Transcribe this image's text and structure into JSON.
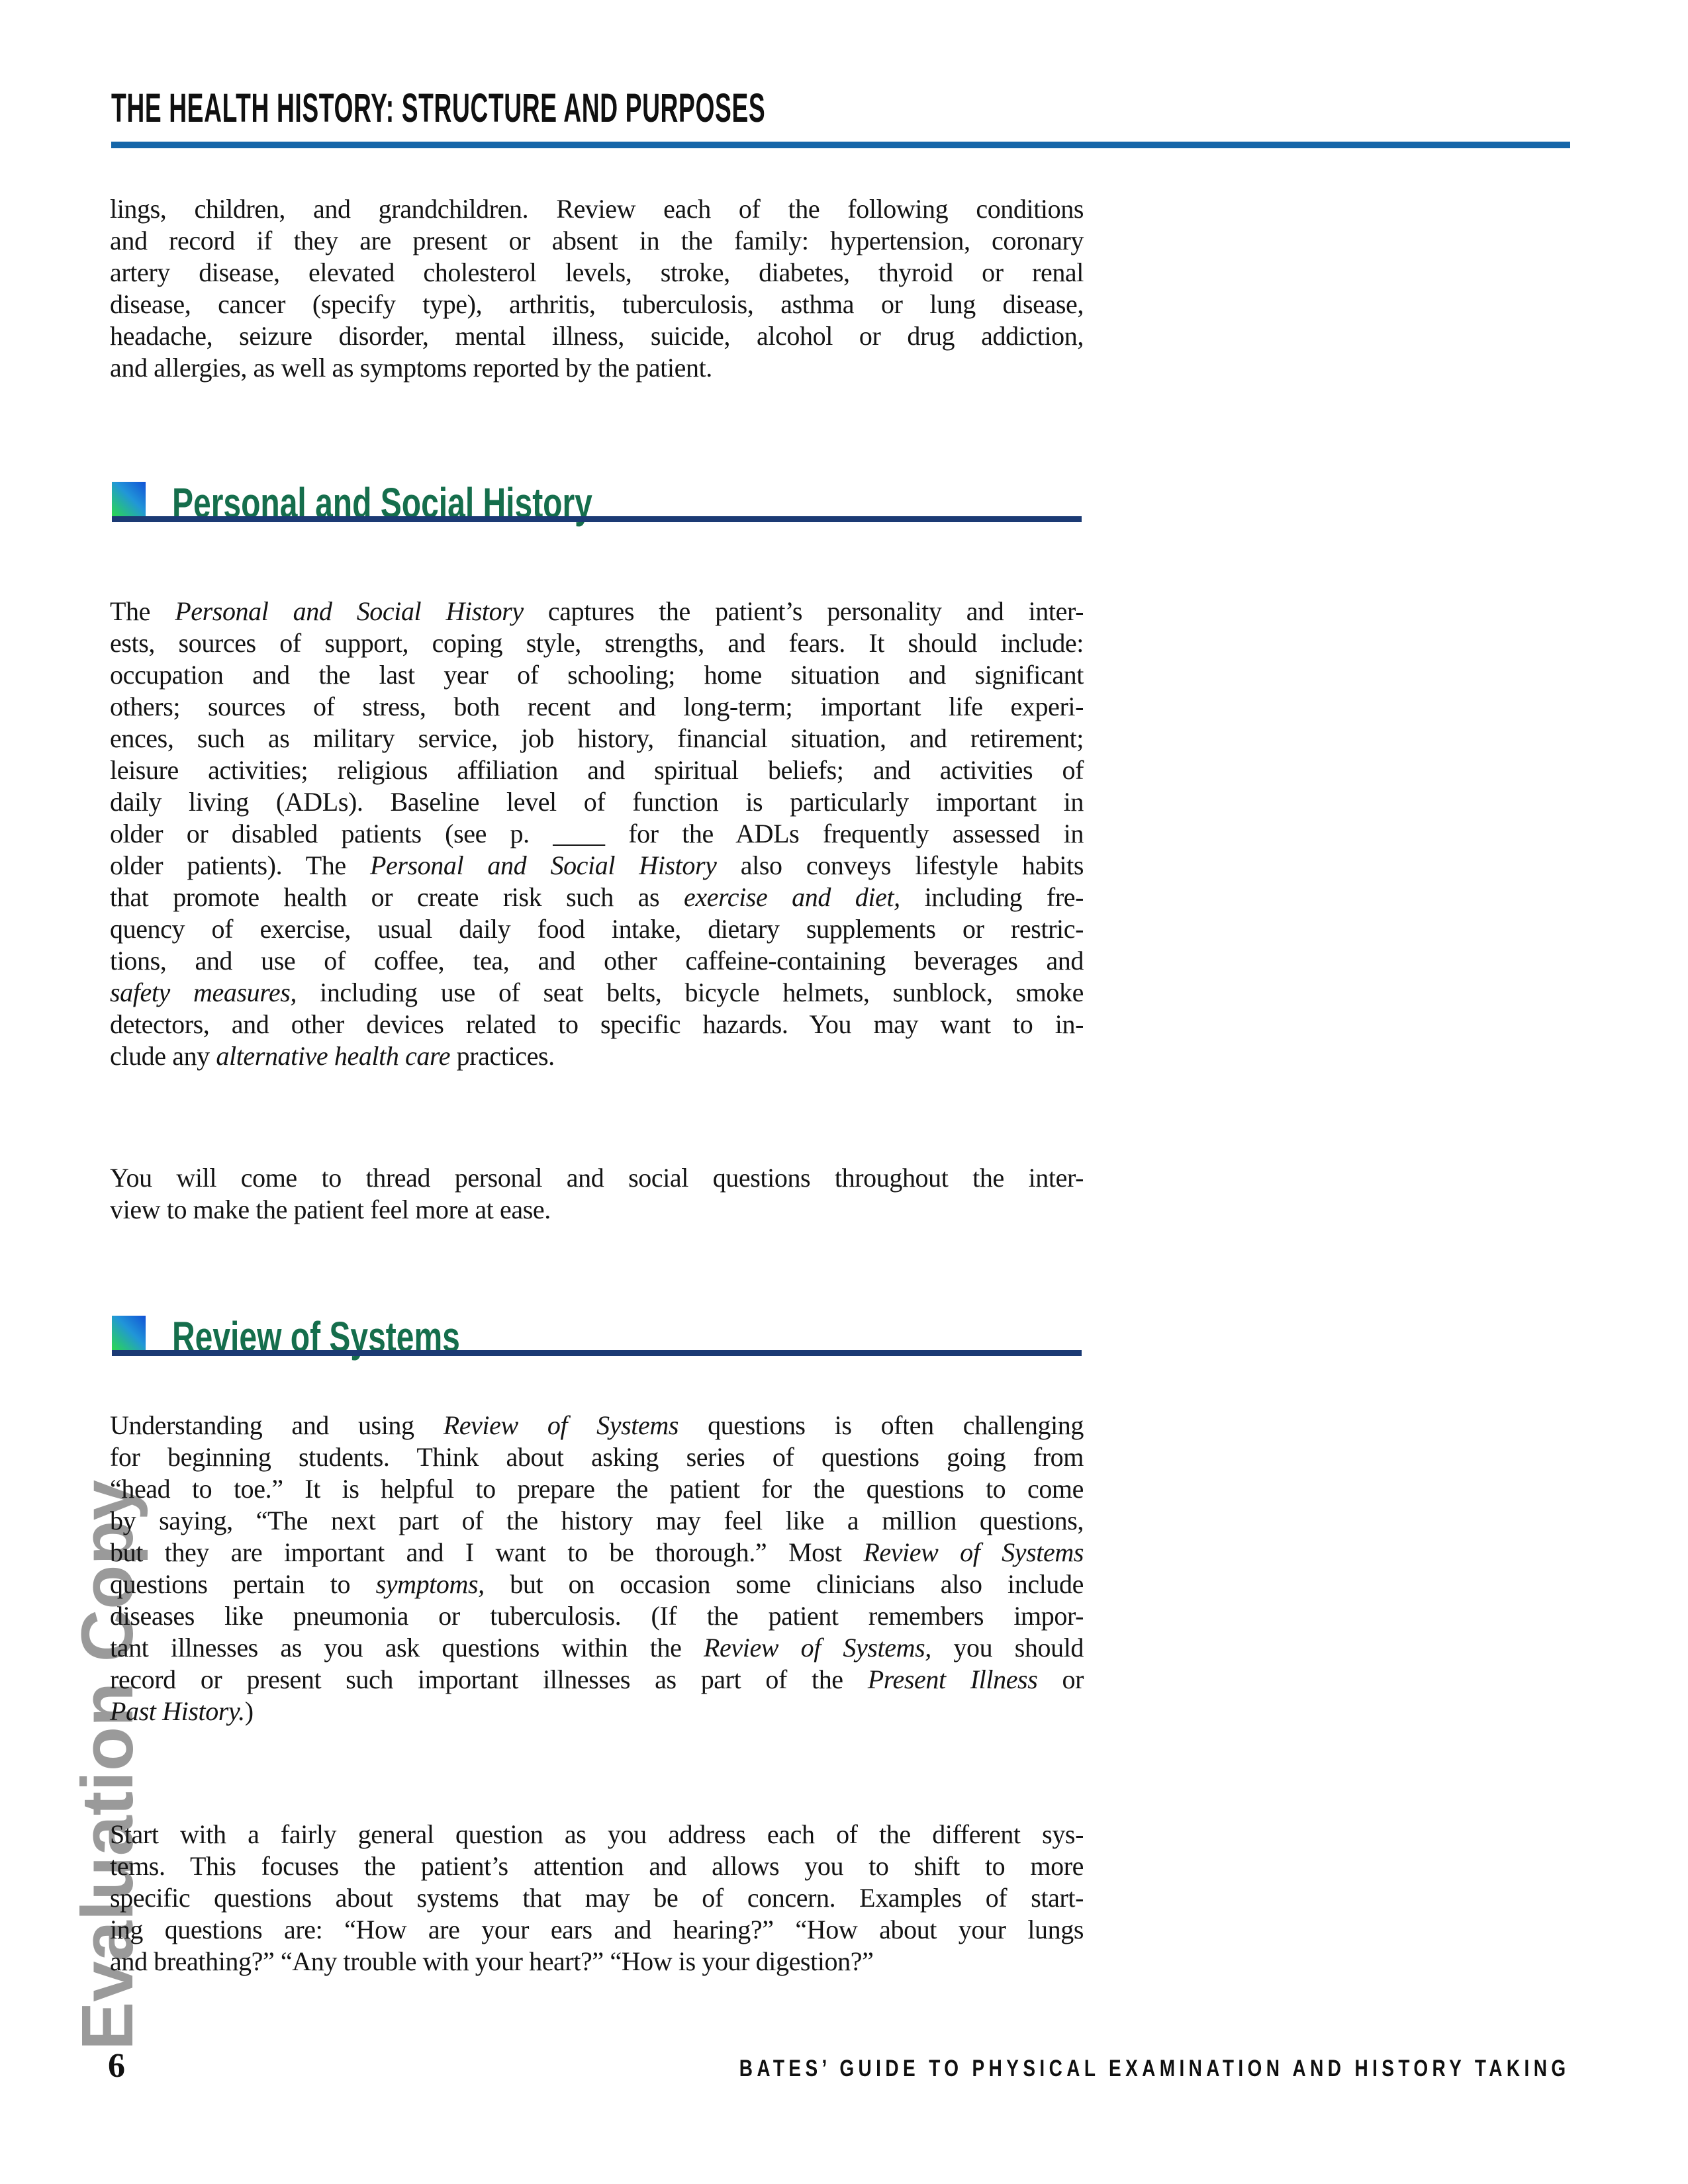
{
  "header": {
    "title": "THE HEALTH HISTORY: STRUCTURE AND PURPOSES"
  },
  "watermark": {
    "text": "Evaluation Copy"
  },
  "sections": [
    {
      "title": "Personal and Social History"
    },
    {
      "title": "Review of Systems"
    }
  ],
  "footer": {
    "page_number": "6",
    "book_title": "BATES’ GUIDE TO PHYSICAL EXAMINATION AND HISTORY TAKING"
  },
  "palette": {
    "header_rule": "#1566a9",
    "heading_green": "#156e4c",
    "heading_rule": "#1b3a74",
    "square_green": "#2bd94e",
    "square_mid": "#2196d8",
    "square_blue": "#1152d6",
    "watermark_gray": "#9a9a9a",
    "text_black": "#141414"
  },
  "content": {
    "paragraphs": [
      {
        "lines": [
          [
            {
              "t": "lings, children, and grandchildren. Review each of the following conditions"
            }
          ],
          [
            {
              "t": "and record if they are present or absent in the family: hypertension, coronary"
            }
          ],
          [
            {
              "t": "artery disease, elevated cholesterol levels, stroke, diabetes, thyroid or renal"
            }
          ],
          [
            {
              "t": "disease, cancer (specify type), arthritis, tuberculosis, asthma or lung disease,"
            }
          ],
          [
            {
              "t": "headache, seizure disorder, mental illness, suicide, alcohol or drug addiction,"
            }
          ],
          [
            {
              "t": "and allergies, as well as symptoms reported by the patient."
            }
          ]
        ]
      },
      {
        "lines": [
          [
            {
              "t": "The "
            },
            {
              "t": "Personal and Social History",
              "i": true
            },
            {
              "t": " captures the patient’s personality and inter-"
            }
          ],
          [
            {
              "t": "ests, sources of support, coping style, strengths, and fears. It should include:"
            }
          ],
          [
            {
              "t": "occupation and the last year of schooling; home situation and significant"
            }
          ],
          [
            {
              "t": "others; sources of stress, both recent and long-term; important life experi-"
            }
          ],
          [
            {
              "t": "ences, such as military service, job history, financial situation, and retirement;"
            }
          ],
          [
            {
              "t": "leisure activities; religious affiliation and spiritual beliefs; and activities of"
            }
          ],
          [
            {
              "t": "daily living (ADLs). Baseline level of function is particularly important in"
            }
          ],
          [
            {
              "t": "older or disabled patients (see p. ____ for the ADLs frequently assessed in"
            }
          ],
          [
            {
              "t": "older patients). The "
            },
            {
              "t": "Personal and Social History",
              "i": true
            },
            {
              "t": " also conveys lifestyle habits"
            }
          ],
          [
            {
              "t": "that promote health or create risk such as "
            },
            {
              "t": "exercise and diet,",
              "i": true
            },
            {
              "t": " including fre-"
            }
          ],
          [
            {
              "t": "quency of exercise, usual daily food intake, dietary supplements or restric-"
            }
          ],
          [
            {
              "t": "tions, and use of coffee, tea, and other caffeine-containing beverages and"
            }
          ],
          [
            {
              "t": "safety measures,",
              "i": true
            },
            {
              "t": " including use of seat belts, bicycle helmets, sunblock, smoke"
            }
          ],
          [
            {
              "t": "detectors, and other devices related to specific hazards. You may want to in-"
            }
          ],
          [
            {
              "t": "clude any "
            },
            {
              "t": "alternative health care",
              "i": true
            },
            {
              "t": " practices."
            }
          ]
        ]
      },
      {
        "lines": [
          [
            {
              "t": "You will come to thread personal and social questions throughout the inter-"
            }
          ],
          [
            {
              "t": "view to make the patient feel more at ease."
            }
          ]
        ]
      },
      {
        "lines": [
          [
            {
              "t": "Understanding and using "
            },
            {
              "t": "Review of Systems",
              "i": true
            },
            {
              "t": " questions is often challenging"
            }
          ],
          [
            {
              "t": "for beginning students. Think about asking series of questions going from"
            }
          ],
          [
            {
              "t": "“head to toe.” It is helpful to prepare the patient for the questions to come"
            }
          ],
          [
            {
              "t": "by saying, “The next part of the history may feel like a million questions,"
            }
          ],
          [
            {
              "t": "but they are important and I want to be thorough.” Most "
            },
            {
              "t": "Review of Systems",
              "i": true
            }
          ],
          [
            {
              "t": "questions pertain to "
            },
            {
              "t": "symptoms,",
              "i": true
            },
            {
              "t": " but on occasion some clinicians also include"
            }
          ],
          [
            {
              "t": "diseases like pneumonia or tuberculosis. (If the patient remembers impor-"
            }
          ],
          [
            {
              "t": "tant illnesses as you ask questions within the "
            },
            {
              "t": "Review of Systems,",
              "i": true
            },
            {
              "t": " you should"
            }
          ],
          [
            {
              "t": "record or present such important illnesses as part of the "
            },
            {
              "t": "Present Illness",
              "i": true
            },
            {
              "t": " or"
            }
          ],
          [
            {
              "t": "Past History.",
              "i": true
            },
            {
              "t": ")"
            }
          ]
        ]
      },
      {
        "lines": [
          [
            {
              "t": "Start with a fairly general question as you address each of the different sys-"
            }
          ],
          [
            {
              "t": "tems. This focuses the patient’s attention and allows you to shift to more"
            }
          ],
          [
            {
              "t": "specific questions about systems that may be of concern. Examples of start-"
            }
          ],
          [
            {
              "t": "ing questions are: “How are your ears and hearing?” “How about your lungs"
            }
          ],
          [
            {
              "t": "and breathing?” “Any trouble with your heart?” “How is your digestion?”"
            }
          ]
        ]
      }
    ]
  }
}
